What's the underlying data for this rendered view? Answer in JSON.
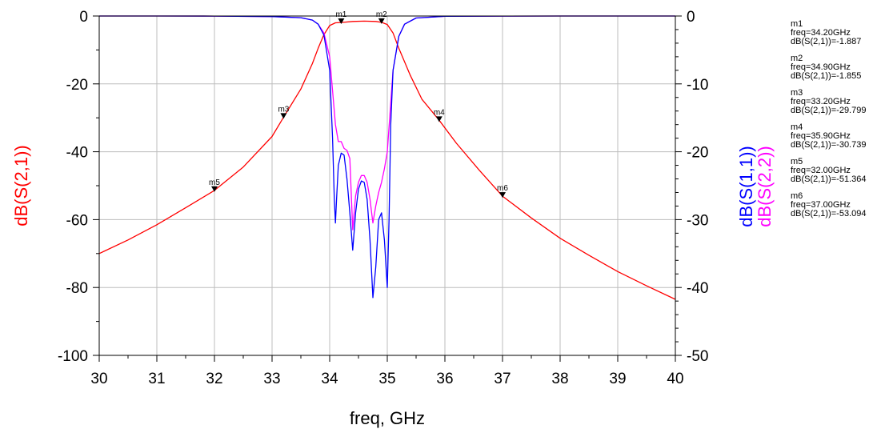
{
  "chart_data": {
    "type": "line",
    "xlabel": "freq, GHz",
    "x_ticks": [
      "30",
      "31",
      "32",
      "33",
      "34",
      "35",
      "36",
      "37",
      "38",
      "39",
      "40"
    ],
    "xlim": [
      30,
      40
    ],
    "left_axis": {
      "label": "dB(S(2,1))",
      "color": "#ff0000",
      "ylim": [
        -100,
        0
      ],
      "ticks": [
        "0",
        "-20",
        "-40",
        "-60",
        "-80",
        "-100"
      ]
    },
    "right_axis": {
      "labels": [
        {
          "text": "dB(S(2,2))",
          "color": "#ff00ff"
        },
        {
          "text": "dB(S(1,1))",
          "color": "#0000ff"
        }
      ],
      "ylim": [
        -50,
        0
      ],
      "ticks": [
        "0",
        "-10",
        "-20",
        "-30",
        "-40",
        "-50"
      ]
    },
    "grid": true,
    "series": [
      {
        "name": "dB(S(2,1))",
        "axis": "left",
        "color": "#ff0000",
        "x": [
          30,
          30.5,
          31,
          31.5,
          32,
          32.5,
          33,
          33.2,
          33.5,
          33.7,
          33.8,
          33.9,
          34.0,
          34.1,
          34.2,
          34.4,
          34.6,
          34.8,
          34.9,
          35.0,
          35.1,
          35.2,
          35.4,
          35.6,
          35.9,
          36.2,
          36.6,
          37.0,
          37.5,
          38.0,
          38.5,
          39.0,
          39.5,
          40.0
        ],
        "y": [
          -70.0,
          -66.0,
          -61.5,
          -56.5,
          -51.4,
          -44.5,
          -35.5,
          -29.8,
          -21.5,
          -14.0,
          -9.5,
          -5.5,
          -2.8,
          -2.0,
          -1.9,
          -1.6,
          -1.5,
          -1.6,
          -1.86,
          -2.5,
          -5.0,
          -9.5,
          -17.5,
          -24.5,
          -30.7,
          -37.5,
          -45.5,
          -53.1,
          -59.5,
          -65.5,
          -70.5,
          -75.3,
          -79.5,
          -83.5
        ]
      },
      {
        "name": "dB(S(2,2))",
        "axis": "right",
        "color": "#ff00ff",
        "x": [
          30,
          31,
          32,
          33,
          33.5,
          33.7,
          33.8,
          33.9,
          34.0,
          34.05,
          34.1,
          34.15,
          34.2,
          34.25,
          34.3,
          34.35,
          34.4,
          34.45,
          34.5,
          34.55,
          34.6,
          34.65,
          34.7,
          34.75,
          34.8,
          34.85,
          34.9,
          34.95,
          35.0,
          35.05,
          35.1,
          35.2,
          35.3,
          35.5,
          36,
          37,
          38,
          39,
          40
        ],
        "y": [
          0,
          0,
          -0.01,
          -0.08,
          -0.25,
          -0.6,
          -1.2,
          -2.5,
          -6.0,
          -11.0,
          -16.0,
          -18.5,
          -18.5,
          -19.5,
          -19.8,
          -21.0,
          -31.5,
          -26.5,
          -24.5,
          -23.5,
          -23.5,
          -24.5,
          -27.0,
          -30.5,
          -28.0,
          -26.0,
          -24.5,
          -22.5,
          -20.0,
          -14.0,
          -8.0,
          -3.0,
          -1.2,
          -0.3,
          -0.05,
          -0.01,
          0,
          0,
          0
        ]
      },
      {
        "name": "dB(S(1,1))",
        "axis": "right",
        "color": "#0000ff",
        "x": [
          30,
          31,
          32,
          33,
          33.5,
          33.7,
          33.8,
          33.9,
          34.0,
          34.05,
          34.08,
          34.1,
          34.12,
          34.15,
          34.2,
          34.25,
          34.3,
          34.35,
          34.4,
          34.45,
          34.5,
          34.55,
          34.6,
          34.65,
          34.7,
          34.75,
          34.8,
          34.85,
          34.9,
          34.95,
          35.0,
          35.03,
          35.06,
          35.1,
          35.2,
          35.3,
          35.5,
          36,
          37,
          38,
          39,
          40
        ],
        "y": [
          0,
          0,
          -0.01,
          -0.08,
          -0.25,
          -0.6,
          -1.2,
          -2.8,
          -8.0,
          -18.0,
          -27.0,
          -30.5,
          -27.0,
          -22.0,
          -20.2,
          -20.5,
          -24.0,
          -29.0,
          -34.5,
          -29.0,
          -25.5,
          -24.3,
          -24.5,
          -27.0,
          -33.0,
          -41.5,
          -37.0,
          -30.0,
          -29.0,
          -33.0,
          -40.0,
          -30.0,
          -16.0,
          -8.0,
          -3.0,
          -1.2,
          -0.3,
          -0.05,
          -0.01,
          0,
          0,
          0
        ]
      }
    ],
    "markers": [
      {
        "id": "m1",
        "x": 34.2,
        "y": -1.887,
        "freq": "freq=34.20GHz",
        "value": "dB(S(2,1))=-1.887"
      },
      {
        "id": "m2",
        "x": 34.9,
        "y": -1.855,
        "freq": "freq=34.90GHz",
        "value": "dB(S(2,1))=-1.855"
      },
      {
        "id": "m3",
        "x": 33.2,
        "y": -29.799,
        "freq": "freq=33.20GHz",
        "value": "dB(S(2,1))=-29.799"
      },
      {
        "id": "m4",
        "x": 35.9,
        "y": -30.739,
        "freq": "freq=35.90GHz",
        "value": "dB(S(2,1))=-30.739"
      },
      {
        "id": "m5",
        "x": 32.0,
        "y": -51.364,
        "freq": "freq=32.00GHz",
        "value": "dB(S(2,1))=-51.364"
      },
      {
        "id": "m6",
        "x": 37.0,
        "y": -53.094,
        "freq": "freq=37.00GHz",
        "value": "dB(S(2,1))=-53.094"
      }
    ]
  }
}
